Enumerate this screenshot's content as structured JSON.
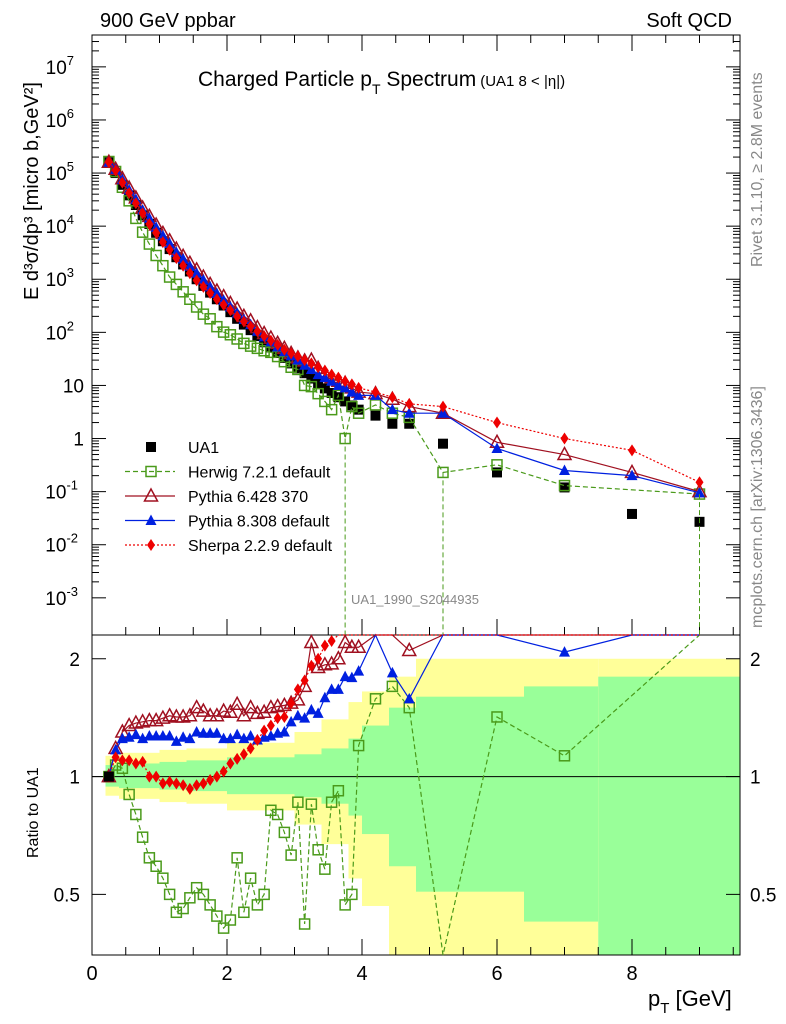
{
  "header": {
    "left": "900 GeV ppbar",
    "right": "Soft QCD"
  },
  "side": {
    "top": "Rivet 3.1.10, ≥ 2.8M events",
    "bottom": "mcplots.cern.ch [arXiv:1306.3436]"
  },
  "chart_data": {
    "type": "scatter",
    "title": "Charged Particle p",
    "title_sub": "T",
    "title_tail": " Spectrum",
    "title_note": "(UA1   8 < |η|)",
    "watermark": "UA1_1990_S2044935",
    "ylabel": "E d³σ/dp³ [micro b,GeV²]",
    "ylabel_main": "E d",
    "ratio_ylabel": "Ratio to UA1",
    "xlabel": "p",
    "xlabel_sub": "T",
    "xlabel_unit": " [GeV]",
    "xlim": [
      0,
      9.6
    ],
    "ylim_log": [
      -3.7,
      7.6
    ],
    "ratio_ylim": [
      0.35,
      2.3
    ],
    "x_ticks": [
      "0",
      "2",
      "4",
      "6",
      "8"
    ],
    "y_ticks": [
      "10",
      "10",
      "10",
      "10",
      "10",
      "10",
      "10",
      "10",
      "1",
      "10",
      "10²",
      "10³",
      "10⁴",
      "10⁵",
      "10⁶",
      "10⁷"
    ],
    "y_tick_labels": [
      {
        "base": "10",
        "exp": "-3"
      },
      {
        "base": "10",
        "exp": "-2"
      },
      {
        "base": "10",
        "exp": "-1"
      },
      {
        "base": "1",
        "exp": ""
      },
      {
        "base": "10",
        "exp": ""
      },
      {
        "base": "10",
        "exp": "2"
      },
      {
        "base": "10",
        "exp": "3"
      },
      {
        "base": "10",
        "exp": "4"
      },
      {
        "base": "10",
        "exp": "5"
      },
      {
        "base": "10",
        "exp": "6"
      },
      {
        "base": "10",
        "exp": "7"
      }
    ],
    "ratio_ticks": [
      "0.5",
      "1",
      "2"
    ],
    "legend": [
      "UA1",
      "Herwig 7.2.1 default",
      "Pythia 6.428 370",
      "Pythia 8.308 default",
      "Sherpa 2.2.9 default"
    ],
    "colors": {
      "data": "#000000",
      "herwig": "#4a9a1a",
      "pythia6": "#a01020",
      "pythia8": "#0020e0",
      "sherpa": "#ee0000",
      "band_yellow": "#ffff99",
      "band_green": "#99ff99"
    },
    "data_x": [
      0.25,
      0.35,
      0.45,
      0.55,
      0.65,
      0.75,
      0.85,
      0.95,
      1.05,
      1.15,
      1.25,
      1.35,
      1.45,
      1.55,
      1.65,
      1.75,
      1.85,
      1.95,
      2.05,
      2.15,
      2.25,
      2.35,
      2.45,
      2.55,
      2.65,
      2.75,
      2.85,
      2.95,
      3.05,
      3.15,
      3.25,
      3.35,
      3.45,
      3.55,
      3.65,
      3.75,
      3.85,
      3.95,
      4.2,
      4.45,
      4.7,
      5.2,
      6.0,
      7.0,
      8.0,
      9.0
    ],
    "series": [
      {
        "name": "UA1",
        "y": [
          160000,
          100000,
          60000,
          38000,
          25000,
          16000,
          11000,
          7500,
          5200,
          3700,
          2600,
          1900,
          1400,
          1000,
          750,
          560,
          420,
          320,
          240,
          180,
          140,
          110,
          85,
          65,
          52,
          41,
          33,
          26,
          21,
          17,
          13.5,
          11,
          8.8,
          7.2,
          6,
          5,
          4.2,
          3.5,
          2.7,
          1.9,
          1.9,
          0.8,
          0.23,
          0.12,
          0.038,
          0.027
        ]
      },
      {
        "name": "Herwig 7.2.1 default",
        "y": [
          165000,
          107000,
          54000,
          30000,
          14000,
          7700,
          4600,
          2800,
          1800,
          1100,
          800,
          580,
          420,
          300,
          220,
          180,
          128,
          101,
          90,
          75,
          62,
          55,
          50,
          45,
          42,
          35,
          28,
          22,
          20,
          10,
          9.5,
          7,
          5,
          3.5,
          6.5,
          1.0,
          4.0,
          3.0,
          4.3,
          3.0,
          2.5,
          0.23,
          0.32,
          0.13,
          null,
          0.09
        ]
      },
      {
        "name": "Pythia 6.428 370",
        "y": [
          160000,
          118000,
          78000,
          52000,
          34000,
          22000,
          15300,
          10500,
          7300,
          5300,
          3700,
          2700,
          2000,
          1500,
          1100,
          800,
          600,
          470,
          350,
          275,
          200,
          165,
          123,
          95,
          78,
          62,
          50,
          40,
          33,
          29,
          30,
          21,
          17,
          14,
          12,
          11,
          9,
          7.5,
          7,
          5.5,
          4,
          3,
          0.85,
          0.5,
          0.23,
          0.1
        ]
      },
      {
        "name": "Pythia 8.308 default",
        "y": [
          160000,
          117000,
          75000,
          48000,
          32000,
          20000,
          14000,
          9500,
          6600,
          4700,
          3200,
          2400,
          1750,
          1300,
          970,
          720,
          540,
          400,
          300,
          230,
          175,
          140,
          105,
          82,
          66,
          53,
          43,
          36,
          30,
          24,
          20,
          16,
          14,
          12,
          10,
          9,
          7.5,
          6.5,
          6.5,
          3.5,
          3,
          3,
          0.65,
          0.25,
          0.2,
          0.095
        ]
      },
      {
        "name": "Sherpa 2.2.9 default",
        "y": [
          160000,
          112000,
          66000,
          42000,
          27000,
          17500,
          11000,
          7500,
          5000,
          3600,
          2500,
          1800,
          1300,
          950,
          720,
          550,
          420,
          330,
          260,
          200,
          160,
          130,
          105,
          85,
          70,
          58,
          47,
          40,
          35,
          30,
          26,
          22,
          19,
          16,
          14,
          12,
          10.5,
          9,
          7.5,
          6,
          4.5,
          4,
          2.0,
          1.0,
          0.6,
          0.15
        ]
      }
    ],
    "ratio_series": [
      {
        "name": "Herwig 7.2.1 default",
        "y": [
          1.0,
          1.07,
          1.05,
          0.9,
          0.8,
          0.7,
          0.62,
          0.59,
          0.55,
          0.5,
          0.45,
          0.46,
          0.49,
          0.52,
          0.5,
          0.47,
          0.44,
          0.41,
          0.43,
          0.62,
          0.45,
          0.55,
          0.47,
          0.5,
          0.82,
          0.8,
          0.72,
          0.63,
          0.86,
          0.42,
          0.85,
          0.65,
          0.58,
          0.86,
          0.92,
          0.47,
          0.5,
          1.2,
          1.58,
          1.7,
          1.5,
          0.28,
          1.42,
          1.13,
          null,
          3.2
        ]
      },
      {
        "name": "Pythia 6.428 370",
        "y": [
          1.0,
          1.18,
          1.3,
          1.35,
          1.37,
          1.38,
          1.39,
          1.39,
          1.41,
          1.43,
          1.42,
          1.42,
          1.43,
          1.5,
          1.47,
          1.43,
          1.43,
          1.47,
          1.46,
          1.53,
          1.43,
          1.5,
          1.45,
          1.46,
          1.5,
          1.51,
          1.52,
          1.54,
          1.57,
          1.7,
          2.2,
          1.9,
          1.93,
          1.94,
          2.0,
          2.2,
          2.14,
          2.14,
          2.6,
          2.9,
          2.1,
          3.75,
          3.7,
          4.2,
          6.0,
          3.7
        ]
      },
      {
        "name": "Pythia 8.308 default",
        "y": [
          1.0,
          1.17,
          1.25,
          1.26,
          1.28,
          1.25,
          1.27,
          1.27,
          1.27,
          1.27,
          1.23,
          1.26,
          1.25,
          1.3,
          1.29,
          1.29,
          1.29,
          1.25,
          1.25,
          1.28,
          1.25,
          1.27,
          1.24,
          1.26,
          1.27,
          1.29,
          1.3,
          1.38,
          1.43,
          1.41,
          1.48,
          1.45,
          1.59,
          1.67,
          1.67,
          1.8,
          1.79,
          1.86,
          2.4,
          1.84,
          1.58,
          3.75,
          2.82,
          2.08,
          5.2,
          3.5
        ]
      },
      {
        "name": "Sherpa 2.2.9 default",
        "y": [
          1.0,
          1.12,
          1.1,
          1.1,
          1.08,
          1.09,
          1.0,
          1.0,
          0.96,
          0.97,
          0.96,
          0.95,
          0.93,
          0.95,
          0.96,
          0.98,
          1.0,
          1.03,
          1.08,
          1.11,
          1.14,
          1.18,
          1.24,
          1.31,
          1.35,
          1.41,
          1.42,
          1.54,
          1.67,
          1.76,
          1.92,
          2.0,
          2.16,
          2.22,
          2.33,
          2.4,
          2.5,
          2.57,
          2.78,
          3.16,
          2.37,
          5.0,
          8.7,
          8.3,
          15.8,
          5.6
        ]
      }
    ]
  }
}
